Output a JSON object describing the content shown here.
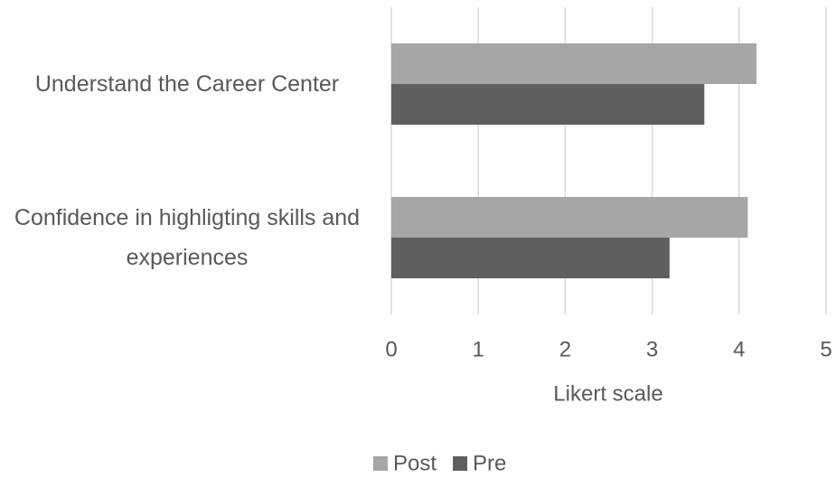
{
  "chart_data": {
    "type": "hbar",
    "categories": [
      "Understand the Career Center",
      "Confidence in highligting skills and experiences"
    ],
    "series": [
      {
        "name": "Post",
        "color": "#a6a6a6",
        "values": [
          4.2,
          4.1
        ]
      },
      {
        "name": "Pre",
        "color": "#5f5f5f",
        "values": [
          3.6,
          3.2
        ]
      }
    ],
    "xlabel": "Likert scale",
    "xlim": [
      0,
      5
    ],
    "xticks": [
      0,
      1,
      2,
      3,
      4,
      5
    ],
    "grid": true,
    "legend": "bottom"
  }
}
